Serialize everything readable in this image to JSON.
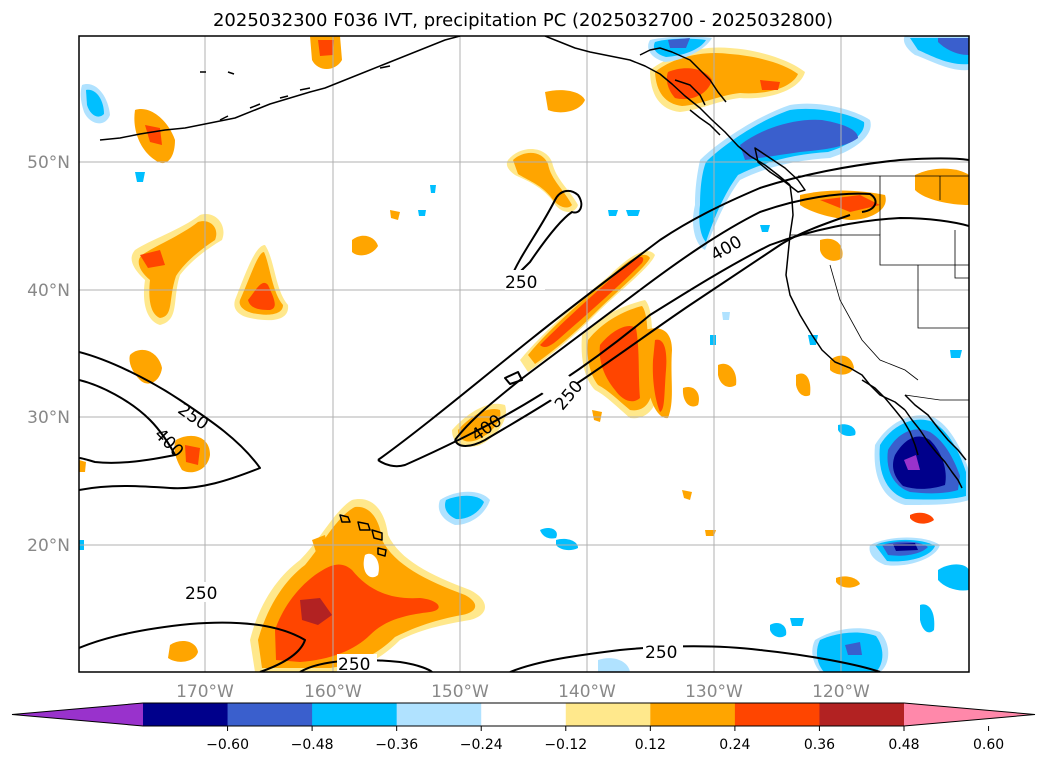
{
  "title": "2025032300 F036 IVT, precipitation PC (2025032700 - 2025032800)",
  "lat_labels": [
    "50°N",
    "40°N",
    "30°N",
    "20°N"
  ],
  "lon_labels": [
    "170°W",
    "160°W",
    "150°W",
    "140°W",
    "130°W",
    "120°W"
  ],
  "contour_levels": [
    "250",
    "400"
  ],
  "contour_labels": [
    "250",
    "250",
    "400",
    "400",
    "250",
    "400",
    "250",
    "250",
    "250"
  ],
  "colorbar": {
    "ticks": [
      "−0.60",
      "−0.48",
      "−0.36",
      "−0.24",
      "−0.12",
      "0.12",
      "0.24",
      "0.36",
      "0.48",
      "0.60"
    ],
    "colors": [
      "#9932cc",
      "#00008b",
      "#3a5fcd",
      "#00bfff",
      "#b0e2ff",
      "#ffffff",
      "#ffe88c",
      "#ffa500",
      "#ff4500",
      "#b22222",
      "#ff88aa"
    ]
  }
}
